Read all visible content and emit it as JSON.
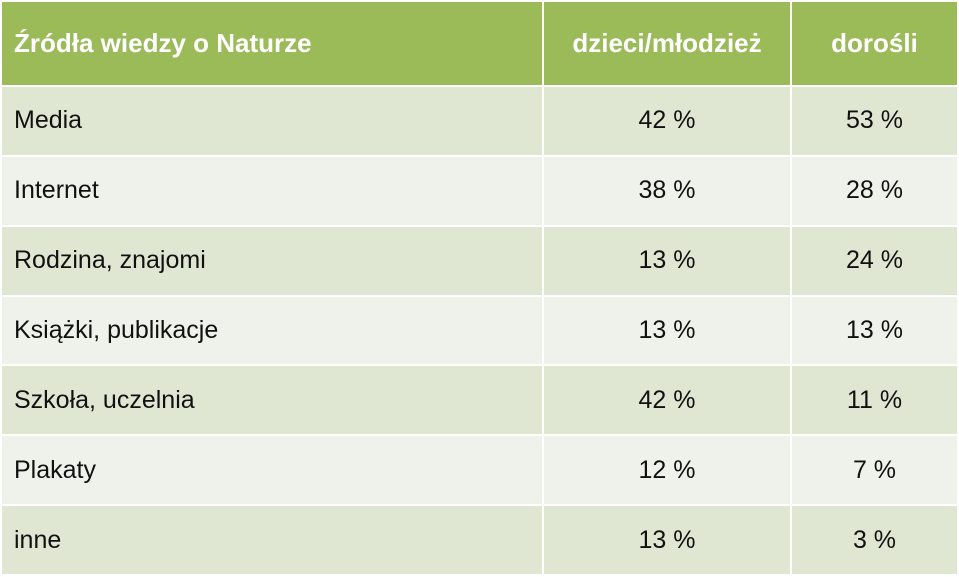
{
  "table": {
    "headers": [
      "Źródła wiedzy o Naturze",
      "dzieci/młodzież",
      "dorośli"
    ],
    "rows": [
      [
        "Media",
        "42 %",
        "53 %"
      ],
      [
        "Internet",
        "38 %",
        "28 %"
      ],
      [
        "Rodzina, znajomi",
        "13 %",
        "24 %"
      ],
      [
        "Książki, publikacje",
        "13 %",
        "13 %"
      ],
      [
        "Szkoła, uczelnia",
        "42 %",
        "11 %"
      ],
      [
        "Plakaty",
        "12 %",
        "7 %"
      ],
      [
        "inne",
        "13 %",
        "3 %"
      ]
    ]
  },
  "colors": {
    "header_bg": "#9bbb59",
    "row_odd_bg": "#dfe6d2",
    "row_even_bg": "#eff2ea",
    "header_text": "#ffffff"
  }
}
